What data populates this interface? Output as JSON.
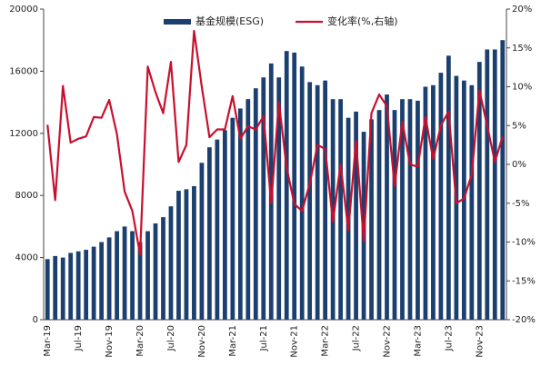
{
  "chart_data": {
    "type": "bar_line",
    "categories": [
      "Mar-19",
      null,
      null,
      null,
      "Jul-19",
      null,
      null,
      null,
      "Nov-19",
      null,
      null,
      null,
      "Mar-20",
      null,
      null,
      null,
      "Jul-20",
      null,
      null,
      null,
      "Nov-20",
      null,
      null,
      null,
      "Mar-21",
      null,
      null,
      null,
      "Jul-21",
      null,
      null,
      null,
      "Nov-21",
      null,
      null,
      null,
      "Mar-22",
      null,
      null,
      null,
      "Jul-22",
      null,
      null,
      null,
      "Nov-22",
      null,
      null,
      null,
      "Mar-23",
      null,
      null,
      null,
      "Jul-23",
      null,
      null,
      null,
      "Nov-23",
      null,
      null,
      null
    ],
    "series": [
      {
        "name": "基金规模(ESG)",
        "type": "bar",
        "color": "#1b3f6e",
        "values": [
          3900,
          4100,
          4000,
          4300,
          4400,
          4500,
          4700,
          5000,
          5300,
          5700,
          6000,
          5700,
          5000,
          5700,
          6200,
          6600,
          7300,
          8300,
          8400,
          8600,
          10100,
          11100,
          11600,
          12200,
          13000,
          13600,
          14200,
          14900,
          15600,
          16500,
          15600,
          17300,
          17200,
          16300,
          15300,
          15100,
          15400,
          14200,
          14200,
          13000,
          13400,
          12100,
          12900,
          13500,
          14500,
          13500,
          14200,
          14200,
          14100,
          15000,
          15100,
          15900,
          17000,
          15700,
          15400,
          15100,
          16600,
          17400,
          17400,
          18000
        ]
      },
      {
        "name": "变化率(%,右轴)",
        "type": "line",
        "axis": "y2",
        "color": "#c8102e",
        "values": [
          5.1,
          -4.6,
          10.1,
          2.8,
          3.3,
          3.6,
          6.1,
          6.0,
          8.3,
          3.9,
          -3.5,
          -6,
          -11.6,
          12.6,
          9.3,
          6.6,
          13.2,
          0.3,
          2.5,
          17.2,
          10,
          3.5,
          4.5,
          4.5,
          8.8,
          3.3,
          4.9,
          4.5,
          6.2,
          -5,
          8,
          -0.4,
          -5.1,
          -6,
          -2.5,
          2.5,
          2,
          -7.4,
          0,
          -8.5,
          3,
          -9.9,
          6.6,
          9,
          7.5,
          -2.8,
          5.5,
          0,
          -0.3,
          6.1,
          0.7,
          5,
          6.8,
          -5,
          -4.4,
          -1.3,
          9.5,
          5,
          0.3,
          3.6
        ]
      }
    ],
    "ylim": [
      0,
      20000
    ],
    "yticks": [
      0,
      4000,
      8000,
      12000,
      16000,
      20000
    ],
    "y2lim": [
      -20,
      20
    ],
    "y2ticks": [
      {
        "value": -20,
        "label": "-20%"
      },
      {
        "value": -15,
        "label": "-15%"
      },
      {
        "value": -10,
        "label": "-10%"
      },
      {
        "value": -5,
        "label": "-5%"
      },
      {
        "value": 0,
        "label": "0%"
      },
      {
        "value": 5,
        "label": "5%"
      },
      {
        "value": 10,
        "label": "10%"
      },
      {
        "value": 15,
        "label": "15%"
      },
      {
        "value": 20,
        "label": "20%"
      }
    ],
    "legend": "top"
  }
}
